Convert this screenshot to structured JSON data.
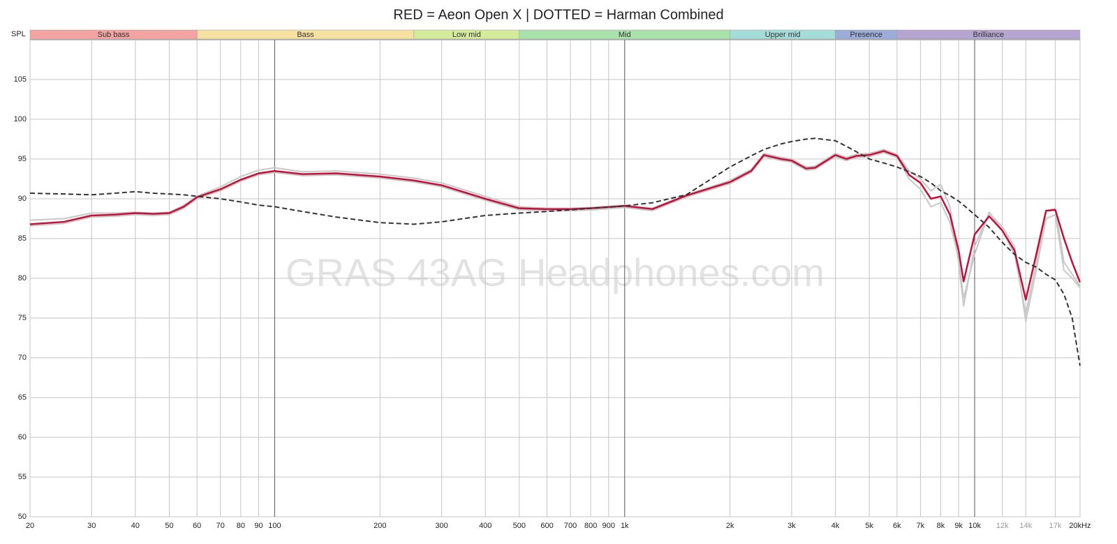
{
  "chart_data": {
    "type": "line",
    "title": "RED = Aeon Open X | DOTTED = Harman Combined",
    "y_label": "SPL",
    "watermark": "GRAS 43AG Headphones.com",
    "log_x": true,
    "grid": true,
    "bands": [
      {
        "label": "Sub bass",
        "from": 20,
        "to": 60,
        "color": "#f4a3a3"
      },
      {
        "label": "Bass",
        "from": 60,
        "to": 250,
        "color": "#f6e0a2"
      },
      {
        "label": "Low mid",
        "from": 250,
        "to": 500,
        "color": "#d5eb9c"
      },
      {
        "label": "Mid",
        "from": 500,
        "to": 2000,
        "color": "#a9e1aa"
      },
      {
        "label": "Upper mid",
        "from": 2000,
        "to": 4000,
        "color": "#a4dcd8"
      },
      {
        "label": "Presence",
        "from": 4000,
        "to": 6000,
        "color": "#9cacd8"
      },
      {
        "label": "Brilliance",
        "from": 6000,
        "to": 20000,
        "color": "#b5a5d0"
      }
    ],
    "xlim": [
      20,
      20000
    ],
    "ylim": [
      50,
      110
    ],
    "xticks": [
      20,
      30,
      40,
      50,
      60,
      70,
      80,
      90,
      100,
      200,
      300,
      400,
      500,
      600,
      700,
      800,
      900,
      {
        "value": 1000,
        "label": "1k"
      },
      {
        "value": 2000,
        "label": "2k"
      },
      {
        "value": 3000,
        "label": "3k"
      },
      {
        "value": 4000,
        "label": "4k"
      },
      {
        "value": 5000,
        "label": "5k"
      },
      {
        "value": 6000,
        "label": "6k"
      },
      {
        "value": 7000,
        "label": "7k"
      },
      {
        "value": 8000,
        "label": "8k"
      },
      {
        "value": 9000,
        "label": "9k"
      },
      {
        "value": 10000,
        "label": "10k"
      },
      {
        "value": 12000,
        "label": "12k"
      },
      {
        "value": 14000,
        "label": "14k"
      },
      {
        "value": 17000,
        "label": "17k"
      },
      {
        "value": 20000,
        "label": "20kHz"
      }
    ],
    "yticks": [
      50,
      55,
      60,
      65,
      70,
      75,
      80,
      85,
      90,
      95,
      100,
      105
    ],
    "x": [
      20,
      25,
      30,
      35,
      40,
      45,
      50,
      55,
      60,
      70,
      80,
      90,
      100,
      120,
      150,
      200,
      250,
      300,
      400,
      500,
      600,
      700,
      800,
      1000,
      1200,
      1500,
      2000,
      2300,
      2500,
      2800,
      3000,
      3300,
      3500,
      4000,
      4300,
      4600,
      5000,
      5500,
      6000,
      6500,
      7000,
      7500,
      8000,
      8500,
      9000,
      9300,
      10000,
      11000,
      12000,
      13000,
      14000,
      15000,
      16000,
      17000,
      18000,
      19000,
      20000
    ],
    "series": [
      {
        "color": "#c8c8c8",
        "width": 2,
        "values": [
          87.3,
          87.5,
          88.2,
          88.2,
          88.3,
          88.2,
          88.3,
          89.2,
          90.3,
          91.5,
          92.8,
          93.6,
          93.9,
          93.4,
          93.5,
          93.1,
          92.6,
          92.0,
          90.3,
          89.0,
          88.8,
          88.8,
          88.9,
          89.2,
          88.8,
          90.5,
          92.3,
          93.7,
          95.7,
          95.2,
          95.0,
          94.0,
          94.1,
          95.7,
          95.2,
          95.6,
          95.7,
          96.2,
          95.6,
          93.5,
          92.5,
          91.0,
          91.8,
          89.0,
          82.0,
          76.5,
          84.0,
          88.2,
          86.5,
          84.0,
          74.6,
          81.0,
          87.5,
          88.0,
          81.0,
          80.0,
          78.8
        ]
      },
      {
        "color": "#c8c8c8",
        "width": 2,
        "values": [
          86.6,
          86.9,
          87.7,
          87.8,
          88.0,
          87.9,
          88.0,
          88.8,
          90.0,
          91.0,
          92.2,
          93.0,
          93.3,
          92.9,
          93.0,
          92.6,
          92.1,
          91.5,
          89.8,
          88.6,
          88.5,
          88.5,
          88.6,
          88.9,
          88.5,
          90.2,
          91.9,
          93.3,
          95.3,
          94.8,
          94.6,
          93.6,
          93.7,
          95.3,
          94.8,
          95.2,
          95.3,
          95.8,
          95.2,
          92.5,
          91.2,
          89.0,
          89.5,
          87.0,
          82.5,
          77.5,
          83.0,
          88.3,
          86.0,
          83.0,
          75.5,
          82.0,
          88.5,
          88.8,
          82.0,
          80.5,
          79.0
        ]
      },
      {
        "color": "#c0103c",
        "width": 2.5,
        "values": [
          86.8,
          87.1,
          87.9,
          88.0,
          88.2,
          88.1,
          88.2,
          89.0,
          90.2,
          91.2,
          92.4,
          93.2,
          93.5,
          93.1,
          93.2,
          92.8,
          92.3,
          91.7,
          90.0,
          88.8,
          88.7,
          88.7,
          88.8,
          89.1,
          88.7,
          90.4,
          92.1,
          93.5,
          95.5,
          95.0,
          94.8,
          93.8,
          93.9,
          95.5,
          95.0,
          95.4,
          95.5,
          96.0,
          95.4,
          93.0,
          92.0,
          90.0,
          90.3,
          88.0,
          83.5,
          79.6,
          85.5,
          87.8,
          86.0,
          83.5,
          77.3,
          83.0,
          88.5,
          88.6,
          85.0,
          82.0,
          79.5
        ]
      },
      {
        "color": "#333333",
        "width": 2,
        "dashed": true,
        "values": [
          90.7,
          90.6,
          90.5,
          90.7,
          90.9,
          90.7,
          90.6,
          90.5,
          90.3,
          90.0,
          89.6,
          89.2,
          89.0,
          88.4,
          87.7,
          87.0,
          86.8,
          87.1,
          87.9,
          88.2,
          88.4,
          88.6,
          88.8,
          89.1,
          89.5,
          90.5,
          94.0,
          95.4,
          96.2,
          96.9,
          97.2,
          97.5,
          97.6,
          97.3,
          96.6,
          95.9,
          95.0,
          94.5,
          94.0,
          93.4,
          92.8,
          92.0,
          91.0,
          90.4,
          89.7,
          89.2,
          88.0,
          86.4,
          84.5,
          83.0,
          82.0,
          81.4,
          80.5,
          79.8,
          78.0,
          75.0,
          69.0
        ]
      }
    ]
  }
}
